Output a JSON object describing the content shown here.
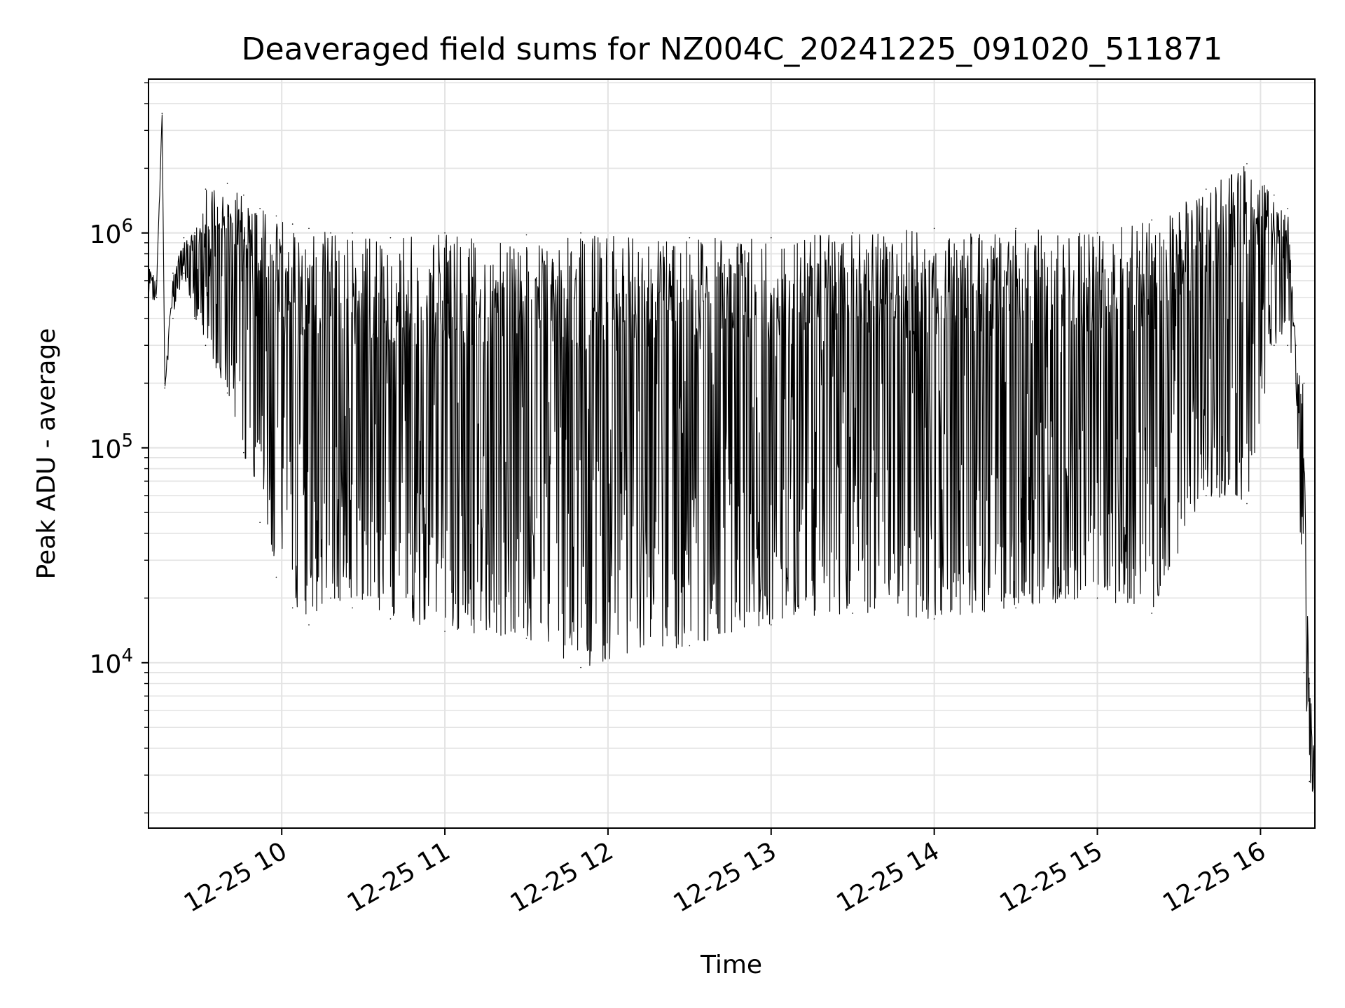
{
  "chart_data": {
    "type": "line",
    "title": "Deaveraged field sums for NZ004C_20241225_091020_511871",
    "xlabel": "Time",
    "ylabel": "Peak ADU - average",
    "yscale": "log",
    "ylim": [
      1700,
      5200000
    ],
    "xlim": [
      "2024-12-25T09:11:00",
      "2024-12-25T16:20:00"
    ],
    "x_ticks": [
      "12-25 10",
      "12-25 11",
      "12-25 12",
      "12-25 13",
      "12-25 14",
      "12-25 15",
      "12-25 16"
    ],
    "y_ticks": [
      {
        "base": "10",
        "exp": "4",
        "value": 10000
      },
      {
        "base": "10",
        "exp": "5",
        "value": 100000
      },
      {
        "base": "10",
        "exp": "6",
        "value": 1000000
      }
    ],
    "grid": true,
    "line_color": "#000000",
    "series": [
      {
        "name": "",
        "x": [
          "2024-12-25T09:11:00",
          "2024-12-25T09:14:00",
          "2024-12-25T09:16:00",
          "2024-12-25T09:17:00",
          "2024-12-25T09:20:00",
          "2024-12-25T09:24:00",
          "2024-12-25T09:28:00",
          "2024-12-25T09:32:00",
          "2024-12-25T09:40:00",
          "2024-12-25T09:46:00",
          "2024-12-25T09:52:00",
          "2024-12-25T09:58:00",
          "2024-12-25T10:04:00",
          "2024-12-25T10:10:00",
          "2024-12-25T10:18:00",
          "2024-12-25T10:26:00",
          "2024-12-25T10:40:00",
          "2024-12-25T11:00:00",
          "2024-12-25T11:30:00",
          "2024-12-25T11:50:00",
          "2024-12-25T12:30:00",
          "2024-12-25T13:00:00",
          "2024-12-25T13:30:00",
          "2024-12-25T14:00:00",
          "2024-12-25T14:30:00",
          "2024-12-25T15:00:00",
          "2024-12-25T15:20:00",
          "2024-12-25T15:40:00",
          "2024-12-25T15:55:00",
          "2024-12-25T16:05:00",
          "2024-12-25T16:10:00",
          "2024-12-25T16:13:00",
          "2024-12-25T16:16:00",
          "2024-12-25T16:18:00",
          "2024-12-25T16:20:00"
        ],
        "upper": [
          700000,
          600000,
          3600000,
          200000,
          650000,
          950000,
          1000000,
          1600000,
          1700000,
          1500000,
          1300000,
          1200000,
          1100000,
          1050000,
          1000000,
          1000000,
          950000,
          1000000,
          980000,
          1000000,
          950000,
          950000,
          1000000,
          1050000,
          1050000,
          1000000,
          1150000,
          1600000,
          2100000,
          1500000,
          1300000,
          300000,
          200000,
          8000,
          4000
        ],
        "lower": [
          450000,
          500000,
          3600000,
          190000,
          400000,
          650000,
          400000,
          300000,
          180000,
          95000,
          45000,
          25000,
          18000,
          15000,
          20000,
          18000,
          16000,
          14000,
          13000,
          9500,
          12000,
          15000,
          17000,
          16000,
          18000,
          20000,
          17000,
          60000,
          55000,
          300000,
          300000,
          200000,
          9000,
          2800,
          2300
        ]
      }
    ]
  }
}
